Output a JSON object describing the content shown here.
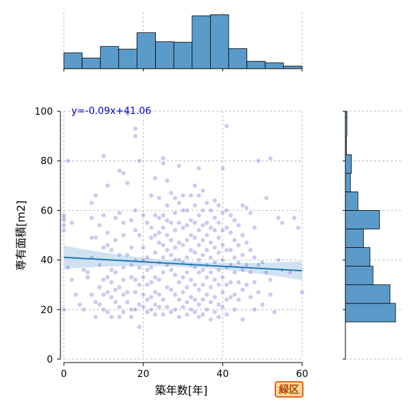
{
  "badge": {
    "label": "緑区"
  },
  "colors": {
    "scatter": "#4646c8",
    "regression": "#1f77b4",
    "band": "#bcd6ec",
    "hist": "#5b9bc9",
    "grid": "#aaaaaa",
    "badge_border": "#e3641a",
    "badge_fill": "#ffd9a0"
  },
  "chart_data": {
    "type": "scatter",
    "xlabel": "築年数[年]",
    "ylabel": "専有面積[m2]",
    "xlim": [
      0,
      60
    ],
    "ylim": [
      0,
      100
    ],
    "x_ticks": [
      0,
      20,
      40,
      60
    ],
    "y_ticks": [
      0,
      20,
      40,
      60,
      80,
      100
    ],
    "grid": true,
    "regression": {
      "equation": "y=-0.09x+41.06",
      "slope": -0.09,
      "intercept": 41.06
    },
    "marginal_x_hist": {
      "bins": [
        0,
        4.6,
        9.2,
        13.8,
        18.4,
        23.1,
        27.7,
        32.3,
        36.9,
        41.5,
        46.1,
        50.7,
        55.3,
        60
      ],
      "relative_heights": [
        0.3,
        0.2,
        0.42,
        0.37,
        0.68,
        0.51,
        0.5,
        1.0,
        1.02,
        0.38,
        0.14,
        0.11,
        0.05
      ]
    },
    "marginal_y_hist": {
      "bins": [
        0,
        7.5,
        15,
        22.5,
        30,
        37.5,
        45,
        52.5,
        60,
        67.5,
        75,
        82.5,
        90,
        97.5,
        105
      ],
      "relative_counts": [
        0,
        0,
        1.0,
        0.89,
        0.55,
        0.49,
        0.36,
        0.68,
        0.25,
        0.1,
        0.12,
        0.02,
        0.03,
        0.03
      ]
    },
    "points": [
      [
        0,
        20
      ],
      [
        0,
        52
      ],
      [
        0,
        54
      ],
      [
        0,
        56
      ],
      [
        0,
        57
      ],
      [
        0,
        58
      ],
      [
        1,
        80
      ],
      [
        1,
        37
      ],
      [
        2,
        32
      ],
      [
        2,
        55
      ],
      [
        3,
        26
      ],
      [
        4,
        22
      ],
      [
        5,
        36
      ],
      [
        5,
        20
      ],
      [
        6,
        35
      ],
      [
        6,
        33
      ],
      [
        7,
        63
      ],
      [
        7,
        57
      ],
      [
        7,
        49
      ],
      [
        7,
        41
      ],
      [
        7,
        26
      ],
      [
        8,
        66
      ],
      [
        8,
        49
      ],
      [
        8,
        23
      ],
      [
        8,
        17
      ],
      [
        9,
        54
      ],
      [
        9,
        38
      ],
      [
        9,
        29
      ],
      [
        9,
        22
      ],
      [
        10,
        82
      ],
      [
        10,
        58
      ],
      [
        10,
        45
      ],
      [
        10,
        32
      ],
      [
        10,
        26
      ],
      [
        10,
        20
      ],
      [
        11,
        70
      ],
      [
        11,
        51
      ],
      [
        11,
        46
      ],
      [
        11,
        33
      ],
      [
        11,
        27
      ],
      [
        11,
        19
      ],
      [
        12,
        44
      ],
      [
        12,
        36
      ],
      [
        12,
        31
      ],
      [
        12,
        25
      ],
      [
        12,
        17
      ],
      [
        13,
        57
      ],
      [
        13,
        48
      ],
      [
        13,
        35
      ],
      [
        13,
        28
      ],
      [
        13,
        23
      ],
      [
        14,
        76
      ],
      [
        14,
        59
      ],
      [
        14,
        42
      ],
      [
        14,
        29
      ],
      [
        14,
        21
      ],
      [
        14,
        17
      ],
      [
        15,
        75
      ],
      [
        15,
        55
      ],
      [
        15,
        50
      ],
      [
        15,
        37
      ],
      [
        15,
        32
      ],
      [
        15,
        26
      ],
      [
        15,
        19
      ],
      [
        16,
        99
      ],
      [
        16,
        71
      ],
      [
        16,
        42
      ],
      [
        16,
        27
      ],
      [
        16,
        23
      ],
      [
        17,
        56
      ],
      [
        17,
        45
      ],
      [
        17,
        38
      ],
      [
        17,
        33
      ],
      [
        17,
        20
      ],
      [
        17,
        17
      ],
      [
        18,
        93
      ],
      [
        18,
        90
      ],
      [
        18,
        60
      ],
      [
        18,
        52
      ],
      [
        18,
        40
      ],
      [
        18,
        32
      ],
      [
        18,
        27
      ],
      [
        18,
        20
      ],
      [
        19,
        80
      ],
      [
        19,
        50
      ],
      [
        19,
        37
      ],
      [
        19,
        30
      ],
      [
        19,
        22
      ],
      [
        19,
        13
      ],
      [
        20,
        58
      ],
      [
        20,
        45
      ],
      [
        20,
        40
      ],
      [
        20,
        33
      ],
      [
        20,
        26
      ],
      [
        20,
        21
      ],
      [
        21,
        55
      ],
      [
        21,
        41
      ],
      [
        21,
        36
      ],
      [
        21,
        30
      ],
      [
        21,
        24
      ],
      [
        21,
        19
      ],
      [
        22,
        66
      ],
      [
        22,
        53
      ],
      [
        22,
        49
      ],
      [
        22,
        37
      ],
      [
        22,
        31
      ],
      [
        22,
        25
      ],
      [
        22,
        20
      ],
      [
        23,
        73
      ],
      [
        23,
        58
      ],
      [
        23,
        50
      ],
      [
        23,
        43
      ],
      [
        23,
        33
      ],
      [
        23,
        27
      ],
      [
        23,
        22
      ],
      [
        23,
        18
      ],
      [
        24,
        65
      ],
      [
        24,
        57
      ],
      [
        24,
        51
      ],
      [
        24,
        47
      ],
      [
        24,
        39
      ],
      [
        24,
        32
      ],
      [
        24,
        26
      ],
      [
        24,
        21
      ],
      [
        25,
        81
      ],
      [
        25,
        79
      ],
      [
        25,
        58
      ],
      [
        25,
        53
      ],
      [
        25,
        46
      ],
      [
        25,
        41
      ],
      [
        25,
        35
      ],
      [
        25,
        24
      ],
      [
        25,
        18
      ],
      [
        26,
        72
      ],
      [
        26,
        62
      ],
      [
        26,
        56
      ],
      [
        26,
        50
      ],
      [
        26,
        44
      ],
      [
        26,
        38
      ],
      [
        26,
        29
      ],
      [
        26,
        21
      ],
      [
        27,
        67
      ],
      [
        27,
        55
      ],
      [
        27,
        48
      ],
      [
        27,
        42
      ],
      [
        27,
        36
      ],
      [
        27,
        28
      ],
      [
        27,
        19
      ],
      [
        28,
        65
      ],
      [
        28,
        59
      ],
      [
        28,
        52
      ],
      [
        28,
        45
      ],
      [
        28,
        40
      ],
      [
        28,
        34
      ],
      [
        28,
        26
      ],
      [
        28,
        20
      ],
      [
        29,
        78
      ],
      [
        29,
        63
      ],
      [
        29,
        55
      ],
      [
        29,
        47
      ],
      [
        29,
        40
      ],
      [
        29,
        31
      ],
      [
        29,
        24
      ],
      [
        29,
        17
      ],
      [
        30,
        66
      ],
      [
        30,
        60
      ],
      [
        30,
        53
      ],
      [
        30,
        46
      ],
      [
        30,
        39
      ],
      [
        30,
        33
      ],
      [
        30,
        27
      ],
      [
        30,
        21
      ],
      [
        31,
        60
      ],
      [
        31,
        54
      ],
      [
        31,
        48
      ],
      [
        31,
        41
      ],
      [
        31,
        35
      ],
      [
        31,
        29
      ],
      [
        31,
        23
      ],
      [
        31,
        18
      ],
      [
        32,
        66
      ],
      [
        32,
        56
      ],
      [
        32,
        50
      ],
      [
        32,
        44
      ],
      [
        32,
        38
      ],
      [
        32,
        32
      ],
      [
        32,
        25
      ],
      [
        32,
        20
      ],
      [
        33,
        70
      ],
      [
        33,
        62
      ],
      [
        33,
        55
      ],
      [
        33,
        49
      ],
      [
        33,
        43
      ],
      [
        33,
        37
      ],
      [
        33,
        30
      ],
      [
        33,
        24
      ],
      [
        33,
        19
      ],
      [
        34,
        77
      ],
      [
        34,
        66
      ],
      [
        34,
        58
      ],
      [
        34,
        52
      ],
      [
        34,
        46
      ],
      [
        34,
        40
      ],
      [
        34,
        35
      ],
      [
        34,
        28
      ],
      [
        34,
        22
      ],
      [
        34,
        17
      ],
      [
        35,
        68
      ],
      [
        35,
        60
      ],
      [
        35,
        54
      ],
      [
        35,
        48
      ],
      [
        35,
        42
      ],
      [
        35,
        36
      ],
      [
        35,
        30
      ],
      [
        35,
        24
      ],
      [
        35,
        18
      ],
      [
        36,
        63
      ],
      [
        36,
        55
      ],
      [
        36,
        50
      ],
      [
        36,
        44
      ],
      [
        36,
        38
      ],
      [
        36,
        33
      ],
      [
        36,
        26
      ],
      [
        36,
        20
      ],
      [
        37,
        60
      ],
      [
        37,
        53
      ],
      [
        37,
        47
      ],
      [
        37,
        41
      ],
      [
        37,
        35
      ],
      [
        37,
        29
      ],
      [
        37,
        23
      ],
      [
        37,
        16
      ],
      [
        38,
        64
      ],
      [
        38,
        57
      ],
      [
        38,
        52
      ],
      [
        38,
        45
      ],
      [
        38,
        39
      ],
      [
        38,
        32
      ],
      [
        38,
        25
      ],
      [
        38,
        19
      ],
      [
        39,
        62
      ],
      [
        39,
        55
      ],
      [
        39,
        49
      ],
      [
        39,
        43
      ],
      [
        39,
        36
      ],
      [
        39,
        30
      ],
      [
        39,
        22
      ],
      [
        39,
        17
      ],
      [
        40,
        77
      ],
      [
        40,
        59
      ],
      [
        40,
        52
      ],
      [
        40,
        46
      ],
      [
        40,
        40
      ],
      [
        40,
        33
      ],
      [
        40,
        27
      ],
      [
        40,
        21
      ],
      [
        41,
        94
      ],
      [
        41,
        60
      ],
      [
        41,
        53
      ],
      [
        41,
        44
      ],
      [
        41,
        37
      ],
      [
        41,
        30
      ],
      [
        41,
        24
      ],
      [
        41,
        18
      ],
      [
        42,
        58
      ],
      [
        42,
        51
      ],
      [
        42,
        44
      ],
      [
        42,
        38
      ],
      [
        42,
        31
      ],
      [
        42,
        25
      ],
      [
        43,
        56
      ],
      [
        43,
        48
      ],
      [
        43,
        41
      ],
      [
        43,
        35
      ],
      [
        43,
        26
      ],
      [
        43,
        20
      ],
      [
        44,
        54
      ],
      [
        44,
        46
      ],
      [
        44,
        39
      ],
      [
        44,
        31
      ],
      [
        44,
        24
      ],
      [
        45,
        62
      ],
      [
        45,
        50
      ],
      [
        45,
        42
      ],
      [
        45,
        36
      ],
      [
        45,
        28
      ],
      [
        45,
        16
      ],
      [
        46,
        61
      ],
      [
        46,
        47
      ],
      [
        46,
        38
      ],
      [
        46,
        30
      ],
      [
        47,
        59
      ],
      [
        47,
        44
      ],
      [
        47,
        35
      ],
      [
        47,
        25
      ],
      [
        48,
        53
      ],
      [
        48,
        41
      ],
      [
        48,
        31
      ],
      [
        48,
        20
      ],
      [
        49,
        80
      ],
      [
        49,
        38
      ],
      [
        49,
        27
      ],
      [
        50,
        39
      ],
      [
        50,
        22
      ],
      [
        51,
        65
      ],
      [
        51,
        35
      ],
      [
        52,
        81
      ],
      [
        52,
        32
      ],
      [
        52,
        26
      ],
      [
        53,
        19
      ],
      [
        54,
        40
      ],
      [
        54,
        57
      ],
      [
        55,
        55
      ],
      [
        55,
        36
      ],
      [
        57,
        35
      ],
      [
        58,
        57
      ],
      [
        59,
        53
      ],
      [
        60,
        27
      ]
    ]
  }
}
